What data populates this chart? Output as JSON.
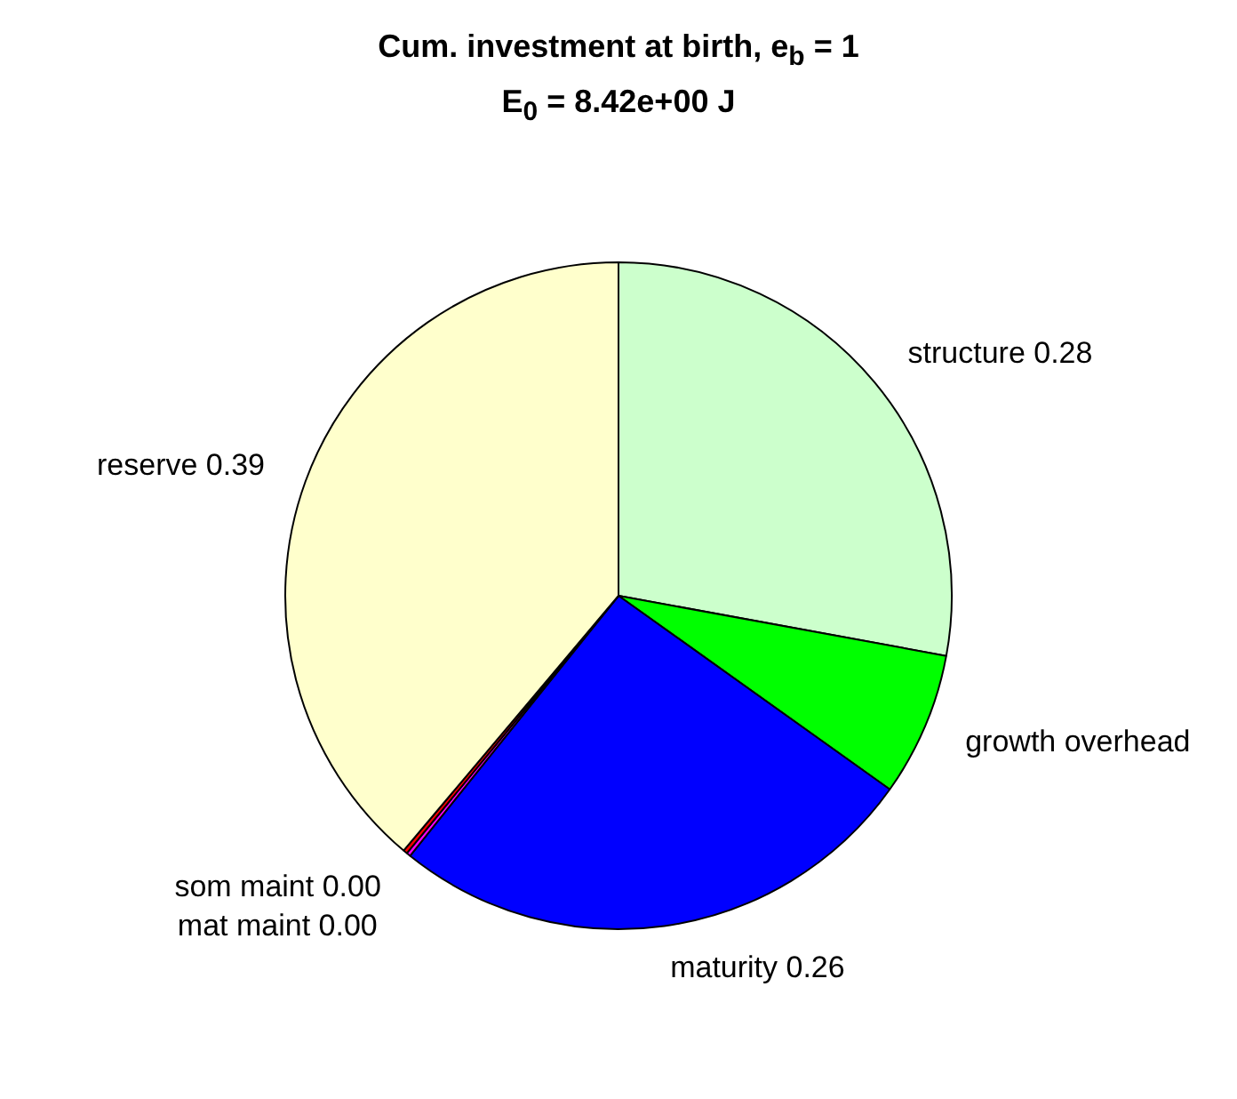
{
  "chart_data": {
    "type": "pie",
    "title": "Cum. investment at birth, e$_{b}$ = 1",
    "subtitle": "E$_{0}$ = 8.42e+00 J",
    "categories": [
      "structure",
      "growth overhead",
      "maturity",
      "som maint",
      "mat maint",
      "reserve"
    ],
    "values": [
      0.28,
      0.07,
      0.26,
      0.002,
      0.002,
      0.39
    ],
    "value_labels": [
      "0.28",
      null,
      "0.26",
      "0.00",
      "0.00",
      "0.39"
    ],
    "colors": [
      "#ccffcc",
      "#00ff00",
      "#0000ff",
      "#ff00ff",
      "#ff0000",
      "#ffffcc"
    ],
    "legend": false
  }
}
